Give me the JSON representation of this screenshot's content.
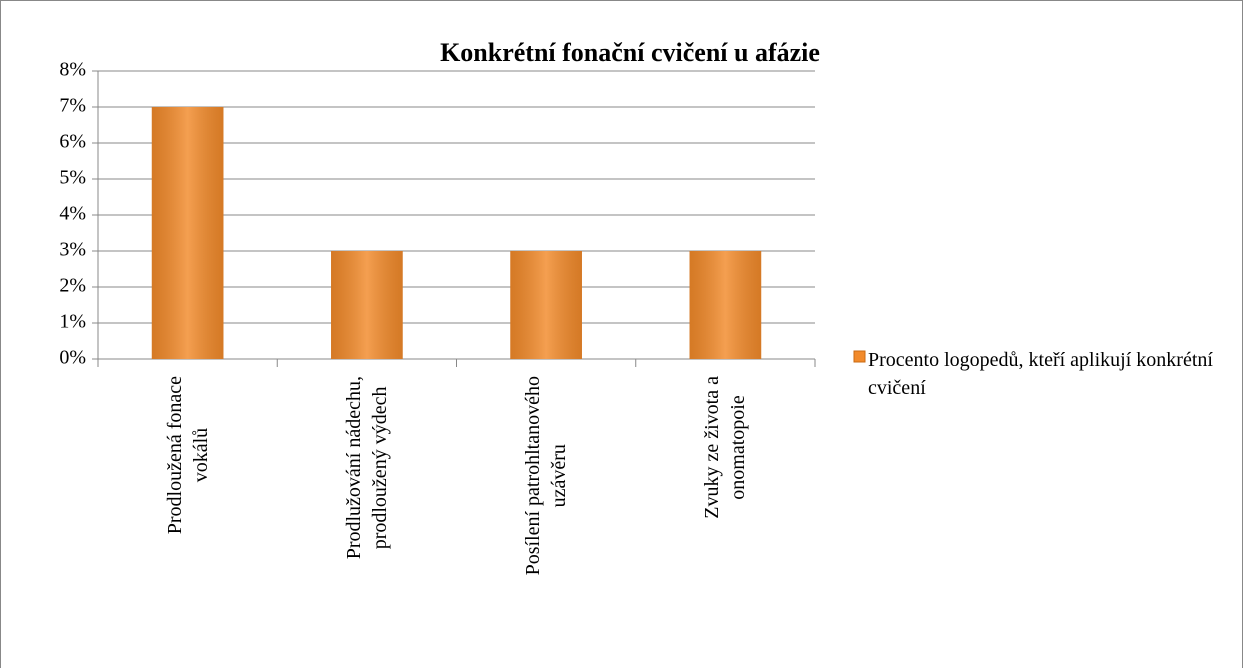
{
  "chart_data": {
    "type": "bar",
    "title": "Konkrétní fonační cvičení u afázie",
    "categories": [
      "Prodloužená fonace\nvokálů",
      "Prodlužování nádechu,\nprodloužený výdech",
      "Posílení patrohltanového\nuzávěru",
      "Zvuky ze života a\nonomatopoie"
    ],
    "series": [
      {
        "name": "Procento logopedů, kteří aplikují konkrétní cvičení",
        "color": "#f28a2a",
        "values": [
          7,
          3,
          3,
          3
        ]
      }
    ],
    "ylim": [
      0,
      8
    ],
    "yticks": [
      {
        "value": 0,
        "label": "0%"
      },
      {
        "value": 1,
        "label": "1%"
      },
      {
        "value": 2,
        "label": "2%"
      },
      {
        "value": 3,
        "label": "3%"
      },
      {
        "value": 4,
        "label": "4%"
      },
      {
        "value": 5,
        "label": "5%"
      },
      {
        "value": 6,
        "label": "6%"
      },
      {
        "value": 7,
        "label": "7%"
      },
      {
        "value": 8,
        "label": "8%"
      }
    ],
    "grid": true,
    "legend": "right"
  }
}
